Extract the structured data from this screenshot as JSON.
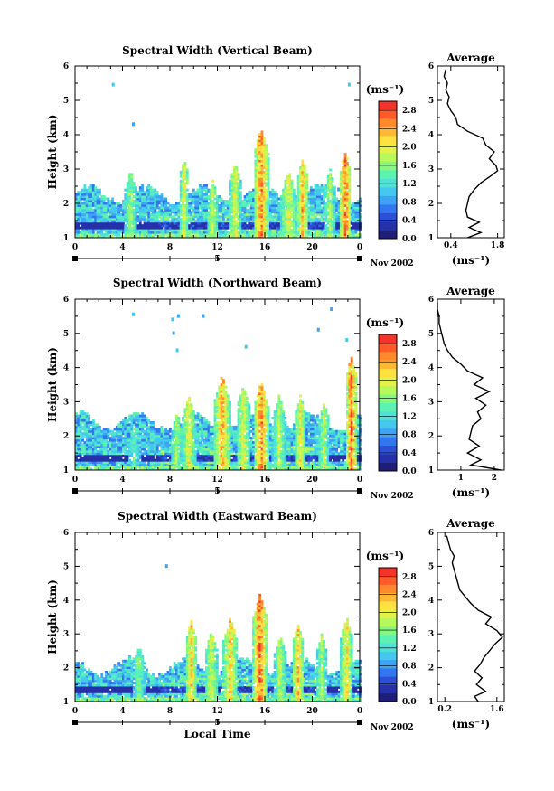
{
  "chart_data": [
    {
      "type": "heatmap",
      "title": "Spectral Width (Vertical Beam)",
      "ylabel": "Height (km)",
      "xlabel": "",
      "x_ticks": [
        "0",
        "4",
        "8",
        "12",
        "16",
        "20",
        "0"
      ],
      "y_ticks": [
        "1",
        "2",
        "3",
        "4",
        "5",
        "6"
      ],
      "xlim": [
        0,
        24
      ],
      "ylim": [
        1,
        6
      ],
      "date_axis": {
        "day_label": "5",
        "month_label": "Nov 2002"
      },
      "colorbar": {
        "unit": "(ms⁻¹)",
        "tick_labels": [
          "0.0",
          "0.4",
          "0.8",
          "1.2",
          "1.6",
          "2.0",
          "2.4",
          "2.8"
        ],
        "range": [
          0.0,
          3.0
        ],
        "colors": [
          "#1e1e78",
          "#2630a8",
          "#2c4fd6",
          "#3377f0",
          "#3ea3f5",
          "#44c8ef",
          "#4de3d6",
          "#5cf2b2",
          "#86f77f",
          "#b7f95a",
          "#e2f24a",
          "#ffe23f",
          "#ffb836",
          "#ff8a2e",
          "#ff5b2a",
          "#f5332a"
        ]
      },
      "average_profile": {
        "title": "Average",
        "xlabel": "(ms⁻¹)",
        "x_ticks": [
          "0.4",
          "1.8"
        ],
        "xlim": [
          0.0,
          2.0
        ],
        "y": [
          1.0,
          1.15,
          1.3,
          1.45,
          1.6,
          1.8,
          2.0,
          2.2,
          2.4,
          2.6,
          2.8,
          2.95,
          3.1,
          3.3,
          3.5,
          3.7,
          3.9,
          4.1,
          4.3,
          4.5,
          4.7,
          4.9,
          5.1,
          5.3,
          5.5,
          5.7,
          5.9
        ],
        "x": [
          0.9,
          1.3,
          0.95,
          1.25,
          0.9,
          0.85,
          0.9,
          0.95,
          1.1,
          1.3,
          1.6,
          1.8,
          1.75,
          1.55,
          1.7,
          1.45,
          1.35,
          0.9,
          0.6,
          0.55,
          0.4,
          0.3,
          0.35,
          0.25,
          0.3,
          0.2,
          0.25
        ]
      }
    },
    {
      "type": "heatmap",
      "title": "Spectral Width (Northward Beam)",
      "ylabel": "Height (km)",
      "xlabel": "",
      "x_ticks": [
        "0",
        "4",
        "8",
        "12",
        "16",
        "20",
        "0"
      ],
      "y_ticks": [
        "1",
        "2",
        "3",
        "4",
        "5",
        "6"
      ],
      "xlim": [
        0,
        24
      ],
      "ylim": [
        1,
        6
      ],
      "date_axis": {
        "day_label": "5",
        "month_label": "Nov 2002"
      },
      "colorbar": {
        "unit": "(ms⁻¹)",
        "tick_labels": [
          "0.0",
          "0.4",
          "0.8",
          "1.2",
          "1.6",
          "2.0",
          "2.4",
          "2.8"
        ],
        "range": [
          0.0,
          3.0
        ],
        "colors": [
          "#1e1e78",
          "#2630a8",
          "#2c4fd6",
          "#3377f0",
          "#3ea3f5",
          "#44c8ef",
          "#4de3d6",
          "#5cf2b2",
          "#86f77f",
          "#b7f95a",
          "#e2f24a",
          "#ffe23f",
          "#ffb836",
          "#ff8a2e",
          "#ff5b2a",
          "#f5332a"
        ]
      },
      "average_profile": {
        "title": "Average",
        "xlabel": "(ms⁻¹)",
        "x_ticks": [
          "1",
          "2"
        ],
        "xlim": [
          0.3,
          2.3
        ],
        "y": [
          1.0,
          1.15,
          1.3,
          1.5,
          1.7,
          1.9,
          2.1,
          2.3,
          2.5,
          2.7,
          2.9,
          3.1,
          3.3,
          3.5,
          3.7,
          3.9,
          4.1,
          4.3,
          4.5,
          4.7,
          4.9,
          5.1,
          5.3,
          5.5,
          5.7,
          5.9
        ],
        "x": [
          2.2,
          1.3,
          1.6,
          1.2,
          1.55,
          1.25,
          1.3,
          1.35,
          1.6,
          1.5,
          1.75,
          1.45,
          1.85,
          1.4,
          1.65,
          1.2,
          1.0,
          0.75,
          0.6,
          0.5,
          0.45,
          0.4,
          0.35,
          0.35,
          0.3,
          0.3
        ]
      }
    },
    {
      "type": "heatmap",
      "title": "Spectral Width (Eastward Beam)",
      "ylabel": "Height (km)",
      "xlabel": "Local Time",
      "x_ticks": [
        "0",
        "4",
        "8",
        "12",
        "16",
        "20",
        "0"
      ],
      "y_ticks": [
        "1",
        "2",
        "3",
        "4",
        "5",
        "6"
      ],
      "xlim": [
        0,
        24
      ],
      "ylim": [
        1,
        6
      ],
      "date_axis": {
        "day_label": "5",
        "month_label": "Nov 2002"
      },
      "colorbar": {
        "unit": "(ms⁻¹)",
        "tick_labels": [
          "0.0",
          "0.4",
          "0.8",
          "1.2",
          "1.6",
          "2.0",
          "2.4",
          "2.8"
        ],
        "range": [
          0.0,
          3.0
        ],
        "colors": [
          "#1e1e78",
          "#2630a8",
          "#2c4fd6",
          "#3377f0",
          "#3ea3f5",
          "#44c8ef",
          "#4de3d6",
          "#5cf2b2",
          "#86f77f",
          "#b7f95a",
          "#e2f24a",
          "#ffe23f",
          "#ffb836",
          "#ff8a2e",
          "#ff5b2a",
          "#f5332a"
        ]
      },
      "average_profile": {
        "title": "Average",
        "xlabel": "(ms⁻¹)",
        "x_ticks": [
          "0.2",
          "1.6"
        ],
        "xlim": [
          0.0,
          1.8
        ],
        "y": [
          1.0,
          1.15,
          1.3,
          1.5,
          1.7,
          1.9,
          2.1,
          2.3,
          2.5,
          2.7,
          2.9,
          3.1,
          3.3,
          3.5,
          3.7,
          3.9,
          4.1,
          4.3,
          4.5,
          4.7,
          4.9,
          5.1,
          5.3,
          5.5,
          5.7,
          5.9
        ],
        "x": [
          1.1,
          1.0,
          1.3,
          1.05,
          1.2,
          1.0,
          1.15,
          1.25,
          1.4,
          1.55,
          1.75,
          1.6,
          1.3,
          1.45,
          1.1,
          0.9,
          0.75,
          0.6,
          0.55,
          0.5,
          0.45,
          0.4,
          0.45,
          0.35,
          0.3,
          0.25
        ]
      }
    }
  ]
}
